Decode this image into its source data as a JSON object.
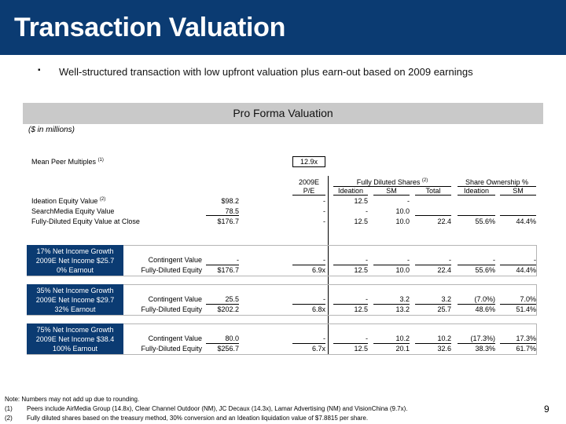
{
  "header": {
    "title": "Transaction Valuation"
  },
  "bullet": "Well-structured transaction with low upfront valuation plus earn-out based on 2009 earnings",
  "section_title": "Pro Forma Valuation",
  "units": "($ in millions)",
  "mean_peer": {
    "label": "Mean Peer Multiples",
    "note": "(1)",
    "value": "12.9x"
  },
  "columns": {
    "pe_top": "2009E",
    "pe_bottom": "P/E",
    "fds_group": "Fully Diluted Shares",
    "fds_note": "(2)",
    "share_group": "Share Ownership %",
    "ideation": "Ideation",
    "sm": "SM",
    "total": "Total",
    "own_ideation": "Ideation",
    "own_sm": "SM"
  },
  "base_rows": [
    {
      "label": "Ideation Equity Value",
      "note": "(2)",
      "value": "$98.2",
      "pe": "-",
      "ideation": "12.5",
      "sm": "-",
      "total": "",
      "own_ideation": "",
      "own_sm": ""
    },
    {
      "label": "SearchMedia Equity Value",
      "note": "",
      "value": "78.5",
      "pe": "-",
      "ideation": "-",
      "sm": "10.0",
      "total": "",
      "own_ideation": "",
      "own_sm": ""
    },
    {
      "label": "Fully-Diluted Equity Value at Close",
      "note": "",
      "value": "$176.7",
      "pe": "-",
      "ideation": "12.5",
      "sm": "10.0",
      "total": "22.4",
      "own_ideation": "55.6%",
      "own_sm": "44.4%"
    }
  ],
  "scenarios": [
    {
      "box": [
        "17% Net Income Growth",
        "2009E Net Income $25.7",
        "0%  Earnout"
      ],
      "rows": [
        {
          "label": "Contingent Value",
          "value": "-",
          "pe": "-",
          "ideation": "-",
          "sm": "-",
          "total": "-",
          "own_ideation": "-",
          "own_sm": "-"
        },
        {
          "label": "Fully-Diluted Equity",
          "value": "$176.7",
          "pe": "6.9x",
          "ideation": "12.5",
          "sm": "10.0",
          "total": "22.4",
          "own_ideation": "55.6%",
          "own_sm": "44.4%"
        }
      ]
    },
    {
      "box": [
        "35% Net Income Growth",
        "2009E Net Income $29.7",
        "32%  Earnout"
      ],
      "rows": [
        {
          "label": "Contingent Value",
          "value": "25.5",
          "pe": "-",
          "ideation": "-",
          "sm": "3.2",
          "total": "3.2",
          "own_ideation": "(7.0%)",
          "own_sm": "7.0%"
        },
        {
          "label": "Fully-Diluted Equity",
          "value": "$202.2",
          "pe": "6.8x",
          "ideation": "12.5",
          "sm": "13.2",
          "total": "25.7",
          "own_ideation": "48.6%",
          "own_sm": "51.4%"
        }
      ]
    },
    {
      "box": [
        "75% Net Income Growth",
        "2009E Net Income $38.4",
        "100%  Earnout"
      ],
      "rows": [
        {
          "label": "Contingent Value",
          "value": "80.0",
          "pe": "-",
          "ideation": "-",
          "sm": "10.2",
          "total": "10.2",
          "own_ideation": "(17.3%)",
          "own_sm": "17.3%"
        },
        {
          "label": "Fully-Diluted Equity",
          "value": "$256.7",
          "pe": "6.7x",
          "ideation": "12.5",
          "sm": "20.1",
          "total": "32.6",
          "own_ideation": "38.3%",
          "own_sm": "61.7%"
        }
      ]
    }
  ],
  "notes": {
    "intro": "Note: Numbers may not add up due to rounding.",
    "items": [
      {
        "num": "(1)",
        "text": "Peers include AirMedia Group (14.8x), Clear Channel Outdoor (NM), JC Decaux (14.3x), Lamar Advertising  (NM) and VisionChina (9.7x)."
      },
      {
        "num": "(2)",
        "text": "Fully diluted shares based on the treasury method, 30% conversion and an Ideation liquidation value of $7.8815 per share."
      }
    ]
  },
  "page_number": "9",
  "colors": {
    "header": "#0b3b72",
    "section_bar": "#c9c9c9"
  }
}
